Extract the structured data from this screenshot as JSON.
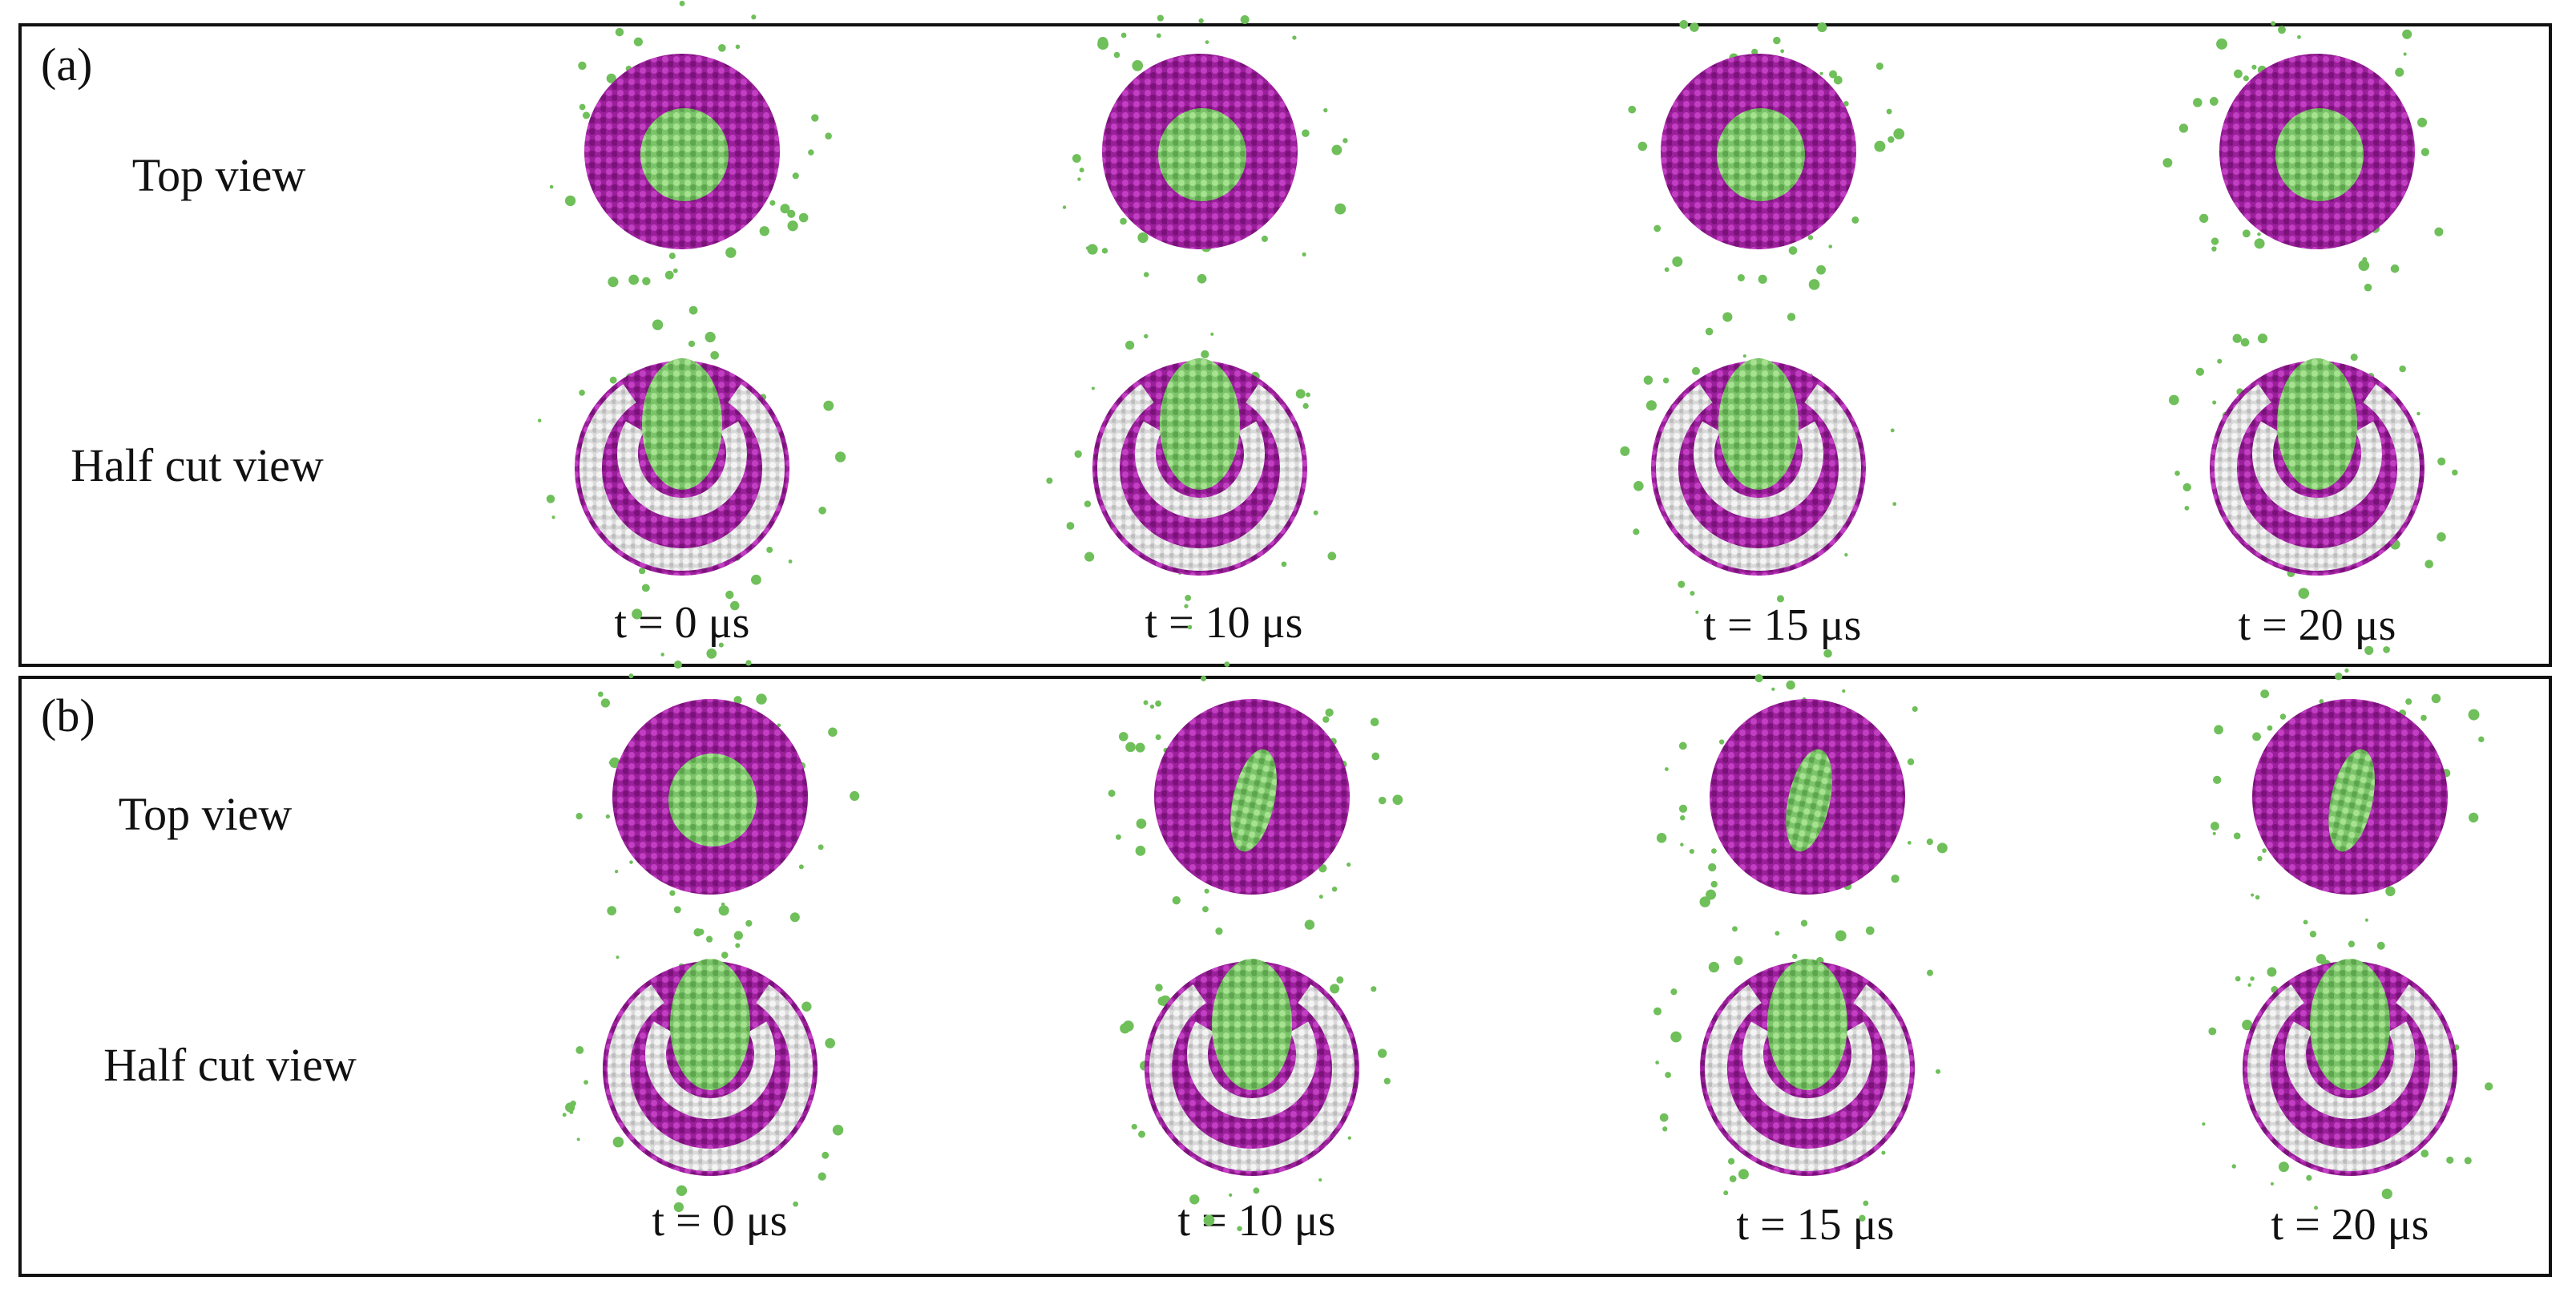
{
  "panels": [
    {
      "label": "(a)",
      "row_labels": [
        "Top view",
        "Half cut view"
      ],
      "times": [
        "t = 0 μs",
        "t = 10 μs",
        "t = 15 μs",
        "t = 20 μs"
      ]
    },
    {
      "label": "(b)",
      "row_labels": [
        "Top view",
        "Half cut view"
      ],
      "times": [
        "t = 0 μs",
        "t = 10 μs",
        "t = 15 μs",
        "t = 20 μs"
      ]
    }
  ]
}
